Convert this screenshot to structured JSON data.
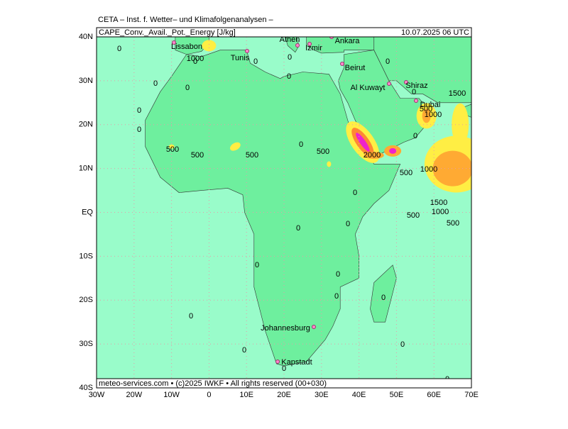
{
  "header": {
    "institute": "CETA – Inst. f. Wetter– und Klimafolgenanalysen –",
    "variable": "CAPE_Conv._Avail._Pot._Energy [J/kg]",
    "valid_time": "10.07.2025 06 UTC",
    "footer": "meteo-services.com • (c)2025 IWKF • All rights reserved (00+030)"
  },
  "map": {
    "lat_ticks": [
      {
        "value": 40,
        "label": "40N"
      },
      {
        "value": 30,
        "label": "30N"
      },
      {
        "value": 20,
        "label": "20N"
      },
      {
        "value": 10,
        "label": "10N"
      },
      {
        "value": 0,
        "label": "EQ"
      },
      {
        "value": -10,
        "label": "10S"
      },
      {
        "value": -20,
        "label": "20S"
      },
      {
        "value": -30,
        "label": "30S"
      },
      {
        "value": -40,
        "label": "40S"
      }
    ],
    "lon_ticks": [
      {
        "value": -30,
        "label": "30W"
      },
      {
        "value": -20,
        "label": "20W"
      },
      {
        "value": -10,
        "label": "10W"
      },
      0,
      {
        "value": 10,
        "label": "10E"
      },
      {
        "value": 20,
        "label": "20E"
      },
      {
        "value": 30,
        "label": "30E"
      },
      {
        "value": 40,
        "label": "40E"
      },
      {
        "value": 50,
        "label": "50E"
      },
      {
        "value": 60,
        "label": "60E"
      },
      {
        "value": 70,
        "label": "70E"
      }
    ],
    "cities": [
      "Lissabon",
      "Tunis",
      "Athen",
      "Izmir",
      "Ankara",
      "Beirut",
      "Al Kuwayt",
      "Shiraz",
      "Dubai",
      "Johannesburg",
      "Kapstadt"
    ],
    "contour_labels": [
      0,
      0,
      0,
      0,
      0,
      0,
      0,
      0,
      0,
      0,
      0,
      0,
      0,
      0,
      0,
      0,
      0,
      0,
      0,
      0,
      0,
      0,
      0,
      0,
      0,
      1000,
      1000,
      1000,
      1000,
      500,
      500,
      500,
      500,
      500,
      500,
      500,
      500,
      1500,
      1500,
      2000
    ]
  }
}
